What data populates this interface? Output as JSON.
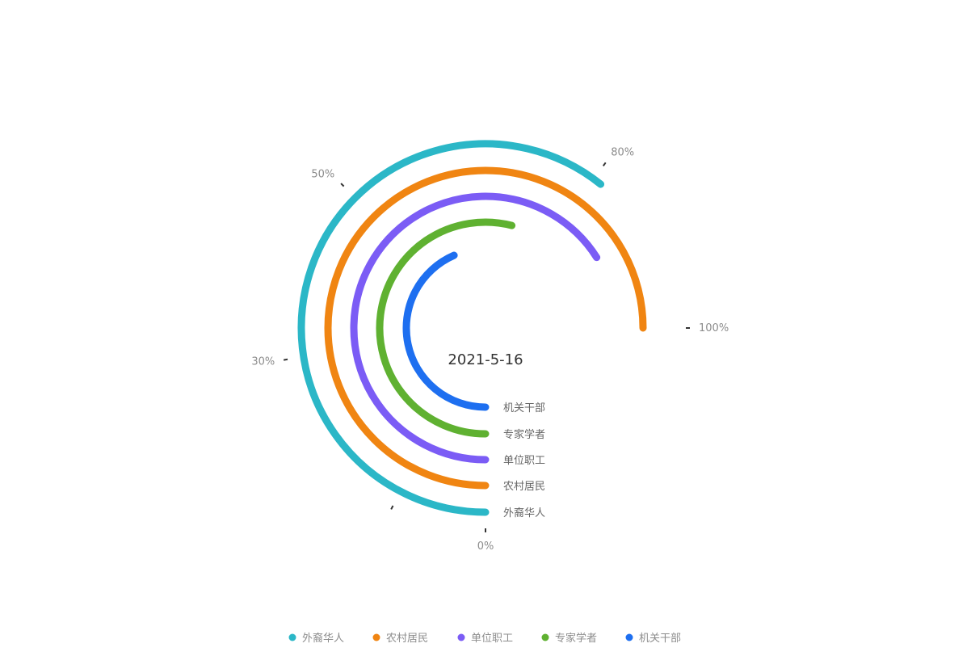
{
  "chart_data": {
    "type": "radial-bar",
    "center_label": "2021-5-16",
    "series": [
      {
        "name": "外裔华人",
        "value": 0.81,
        "color": "#2bb7c7"
      },
      {
        "name": "农村居民",
        "value": 1.0,
        "color": "#f08512"
      },
      {
        "name": "单位职工",
        "value": 0.88,
        "color": "#7b5cf5"
      },
      {
        "name": "专家学者",
        "value": 0.72,
        "color": "#5fb131"
      },
      {
        "name": "机关干部",
        "value": 0.58,
        "color": "#1e6ff0"
      }
    ],
    "ticks": [
      {
        "label": "0%",
        "value": 0.0
      },
      {
        "label": "30%",
        "value": 0.3
      },
      {
        "label": "50%",
        "value": 0.5
      },
      {
        "label": "80%",
        "value": 0.8
      },
      {
        "label": "100%",
        "value": 1.0
      }
    ],
    "legend_placement": "bottom"
  }
}
